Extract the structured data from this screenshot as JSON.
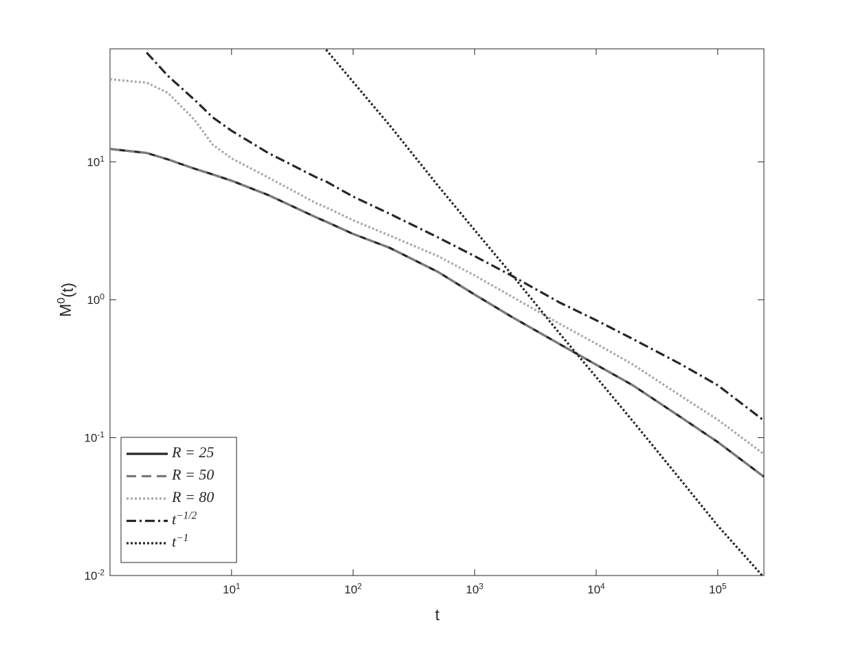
{
  "chart_data": {
    "type": "line",
    "xlabel": "t",
    "ylabel": "M^0(t)",
    "log_x": true,
    "log_y": true,
    "grid": false,
    "legend": "lower left",
    "xlim": [
      1,
      240000
    ],
    "ylim": [
      0.01,
      66
    ],
    "xticks": [
      {
        "value": 10,
        "label": "10^1"
      },
      {
        "value": 100,
        "label": "10^2"
      },
      {
        "value": 1000,
        "label": "10^3"
      },
      {
        "value": 10000,
        "label": "10^4"
      },
      {
        "value": 100000,
        "label": "10^5"
      }
    ],
    "yticks": [
      {
        "value": 0.01,
        "label": "10^-2"
      },
      {
        "value": 0.1,
        "label": "10^-1"
      },
      {
        "value": 1,
        "label": "10^0"
      },
      {
        "value": 10,
        "label": "10^1"
      }
    ],
    "x": [
      1,
      2,
      3,
      5,
      7,
      10,
      20,
      50,
      60,
      100,
      200,
      500,
      1000,
      2000,
      5000,
      10000,
      20000,
      50000,
      100000,
      240000
    ],
    "series": [
      {
        "name": "R = 25",
        "color": "#262626",
        "dash": "solid",
        "values": [
          12.4,
          11.6,
          10.4,
          8.9,
          8.1,
          7.3,
          5.75,
          3.95,
          3.68,
          3.0,
          2.38,
          1.59,
          1.09,
          0.755,
          0.477,
          0.338,
          0.24,
          0.14,
          0.093,
          0.052
        ]
      },
      {
        "name": "R = 50",
        "color": "#7a7a7a",
        "dash": "dashed",
        "values": [
          12.4,
          11.6,
          10.4,
          8.9,
          8.1,
          7.3,
          5.75,
          3.95,
          3.68,
          3.0,
          2.38,
          1.59,
          1.09,
          0.755,
          0.477,
          0.338,
          0.24,
          0.14,
          0.093,
          0.052
        ]
      },
      {
        "name": "R = 80",
        "color": "#a8a8a8",
        "dash": "dotted",
        "values": [
          39.7,
          37.5,
          31.6,
          20,
          13.3,
          10.6,
          7.7,
          5.0,
          4.68,
          3.77,
          2.92,
          2.07,
          1.5,
          1.06,
          0.67,
          0.48,
          0.34,
          0.2,
          0.135,
          0.076
        ]
      },
      {
        "name": "t^−1/2",
        "color": "#262626",
        "dash": "dashdot",
        "values": [
          null,
          62,
          42,
          28,
          21,
          16.8,
          11.6,
          7.7,
          7.2,
          5.6,
          4.2,
          2.83,
          2.07,
          1.5,
          0.955,
          0.71,
          0.52,
          0.34,
          0.24,
          0.133
        ]
      },
      {
        "name": "t^−1",
        "color": "#262626",
        "dash": "dotted",
        "values": [
          null,
          null,
          null,
          null,
          null,
          null,
          null,
          null,
          65,
          38,
          18.4,
          6.7,
          3.2,
          1.54,
          0.57,
          0.275,
          0.132,
          0.049,
          0.023,
          0.0097
        ]
      }
    ]
  }
}
